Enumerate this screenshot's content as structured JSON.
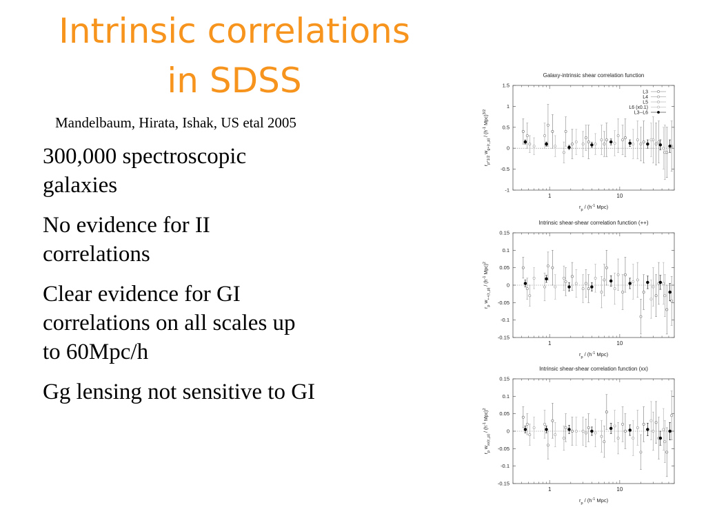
{
  "slide": {
    "title_line1": "Intrinsic correlations",
    "title_line2": "in SDSS",
    "subtitle": "Mandelbaum, Hirata, Ishak, US etal 2005",
    "title_color": "#f7941d",
    "bullets": [
      {
        "line1": "300,000 spectroscopic",
        "line2": "galaxies"
      },
      {
        "line1": "No evidence for II",
        "line2": "correlations"
      },
      {
        "line1": "Clear evidence for GI",
        "line2": "correlations on all scales up",
        "line3": "to 60Mpc/h"
      },
      {
        "line1": "Gg lensing not sensitive to GI"
      }
    ]
  },
  "chart_data": [
    {
      "type": "scatter",
      "title": "Galaxy-intrinsic shear correlation function",
      "xlabel": "r_p / (h^-1 Mpc)",
      "ylabel": "r_p^1/2 w_g+(r_p) / (h^-1 Mpc)^3/2",
      "x_scale": "log",
      "xlim": [
        0.3,
        60
      ],
      "ylim": [
        -1,
        1.5
      ],
      "yticks": [
        1.5,
        1,
        0.5,
        0,
        -0.5,
        -1
      ],
      "ytick_labels": [
        "1.5",
        "1",
        "0.5",
        "0",
        "-0.5",
        "-1"
      ],
      "xticks": [
        1,
        10
      ],
      "xtick_labels": [
        "1",
        "10"
      ],
      "legend": [
        "L3",
        "L4",
        "L5",
        "L6 (x0.1)",
        "L3--L6"
      ],
      "legend_position": "top-right",
      "zero_line": true,
      "series": [
        {
          "name": "L3--L6",
          "color": "#000000",
          "filled": true,
          "x": [
            0.45,
            0.9,
            1.9,
            4.0,
            7.5,
            14,
            25,
            38,
            52
          ],
          "y": [
            0.15,
            0.1,
            0.02,
            0.08,
            0.15,
            0.12,
            0.1,
            0.08,
            0.05
          ],
          "err": [
            0.05,
            0.05,
            0.05,
            0.06,
            0.07,
            0.08,
            0.1,
            0.12,
            0.15
          ]
        },
        {
          "name": "L3",
          "color": "#777777",
          "filled": false,
          "x": [
            0.42,
            1.1,
            2.1,
            3.6,
            6.5,
            12,
            22,
            33,
            47
          ],
          "y": [
            0.4,
            0.4,
            0.1,
            0.15,
            0.2,
            0.25,
            0.15,
            0.1,
            -0.1
          ],
          "err": [
            0.3,
            0.4,
            0.35,
            0.4,
            0.4,
            0.45,
            0.5,
            0.5,
            0.6
          ]
        },
        {
          "name": "L4",
          "color": "#888888",
          "filled": false,
          "x": [
            0.48,
            0.95,
            1.7,
            3.3,
            6.0,
            11,
            20,
            36,
            55
          ],
          "y": [
            0.3,
            0.55,
            0.4,
            0.25,
            0.1,
            0.2,
            0.1,
            0.15,
            0.05
          ],
          "err": [
            0.3,
            0.5,
            0.35,
            0.3,
            0.3,
            0.35,
            0.4,
            0.5,
            0.6
          ]
        },
        {
          "name": "L5",
          "color": "#999999",
          "filled": false,
          "x": [
            0.52,
            0.85,
            1.6,
            3.0,
            5.5,
            9.5,
            18,
            30,
            44
          ],
          "y": [
            0.1,
            0.3,
            -0.1,
            0.1,
            0.2,
            0.3,
            0.2,
            0.2,
            -0.1
          ],
          "err": [
            0.2,
            0.3,
            0.25,
            0.3,
            0.35,
            0.4,
            0.45,
            0.55,
            0.65
          ]
        },
        {
          "name": "L6 (x0.1)",
          "color": "#aaaaaa",
          "filled": false,
          "x": [
            0.6,
            1.2,
            2.4,
            4.5,
            8.5,
            15.5,
            28,
            42
          ],
          "y": [
            0.05,
            0.05,
            0.15,
            0.1,
            0.12,
            0.1,
            0.2,
            0.0
          ],
          "err": [
            0.2,
            0.25,
            0.3,
            0.25,
            0.3,
            0.35,
            0.4,
            0.5
          ]
        }
      ]
    },
    {
      "type": "scatter",
      "title": "Intrinsic shear-shear correlation function (++)",
      "xlabel": "r_p / (h^-1 Mpc)",
      "ylabel": "r_p w_++(r_p) / (h^-1 Mpc)^2",
      "x_scale": "log",
      "xlim": [
        0.3,
        60
      ],
      "ylim": [
        -0.15,
        0.15
      ],
      "yticks": [
        0.15,
        0.1,
        0.05,
        0,
        -0.05,
        -0.1,
        -0.15
      ],
      "ytick_labels": [
        "0.15",
        "0.1",
        "0.05",
        "0",
        "-0.05",
        "-0.1",
        "-0.15"
      ],
      "xticks": [
        1,
        10
      ],
      "xtick_labels": [
        "1",
        "10"
      ],
      "zero_line": true,
      "series": [
        {
          "name": "L3--L6",
          "color": "#000000",
          "filled": true,
          "x": [
            0.45,
            0.9,
            1.9,
            4.0,
            7.5,
            14,
            25,
            38,
            52
          ],
          "y": [
            0.005,
            0.018,
            -0.005,
            -0.005,
            0.012,
            0.005,
            0.008,
            0.008,
            -0.02
          ],
          "err": [
            0.01,
            0.01,
            0.012,
            0.012,
            0.015,
            0.015,
            0.018,
            0.02,
            0.025
          ]
        },
        {
          "name": "L3",
          "color": "#777777",
          "filled": false,
          "x": [
            0.42,
            1.1,
            2.1,
            3.6,
            6.5,
            12,
            22,
            33,
            47
          ],
          "y": [
            0.05,
            0.05,
            0.025,
            -0.01,
            0.05,
            0.03,
            -0.02,
            -0.03,
            -0.07
          ],
          "err": [
            0.03,
            0.05,
            0.04,
            0.04,
            0.05,
            0.05,
            0.05,
            0.06,
            0.07
          ]
        },
        {
          "name": "L4",
          "color": "#888888",
          "filled": false,
          "x": [
            0.48,
            0.95,
            1.7,
            3.3,
            6.0,
            11,
            20,
            36,
            55
          ],
          "y": [
            -0.01,
            0.055,
            0.01,
            0.005,
            0.015,
            -0.02,
            -0.09,
            0.005,
            -0.045
          ],
          "err": [
            0.03,
            0.04,
            0.04,
            0.04,
            0.045,
            0.05,
            0.05,
            0.06,
            0.07
          ]
        },
        {
          "name": "L5",
          "color": "#999999",
          "filled": false,
          "x": [
            0.52,
            0.85,
            1.6,
            3.0,
            5.5,
            9.5,
            18,
            30,
            44
          ],
          "y": [
            -0.03,
            -0.005,
            0.02,
            -0.01,
            -0.02,
            0.03,
            0.015,
            -0.005,
            -0.03
          ],
          "err": [
            0.03,
            0.04,
            0.035,
            0.04,
            0.045,
            0.045,
            0.05,
            0.055,
            0.06
          ]
        },
        {
          "name": "L6 (x0.1)",
          "color": "#aaaaaa",
          "filled": false,
          "x": [
            0.6,
            1.2,
            2.4,
            4.5,
            8.5,
            15.5,
            28,
            42
          ],
          "y": [
            0.02,
            -0.005,
            0.005,
            0.02,
            -0.01,
            0.01,
            -0.04,
            0.005
          ],
          "err": [
            0.03,
            0.035,
            0.04,
            0.04,
            0.045,
            0.05,
            0.055,
            0.06
          ]
        }
      ]
    },
    {
      "type": "scatter",
      "title": "Intrinsic shear-shear correlation function (xx)",
      "xlabel": "r_p / (h^-1 Mpc)",
      "ylabel": "r_p w_xx(r_p) / (h^-1 Mpc)^2",
      "x_scale": "log",
      "xlim": [
        0.3,
        60
      ],
      "ylim": [
        -0.15,
        0.15
      ],
      "yticks": [
        0.15,
        0.1,
        0.05,
        0,
        -0.05,
        -0.1,
        -0.15
      ],
      "ytick_labels": [
        "0.15",
        "0.1",
        "0.05",
        "0",
        "-0.05",
        "-0.1",
        "-0.15"
      ],
      "xticks": [
        1,
        10
      ],
      "xtick_labels": [
        "1",
        "10"
      ],
      "zero_line": true,
      "series": [
        {
          "name": "L3--L6",
          "color": "#000000",
          "filled": true,
          "x": [
            0.45,
            0.9,
            1.9,
            4.0,
            7.5,
            14,
            25,
            38,
            52
          ],
          "y": [
            0.005,
            0.005,
            0.005,
            0.0,
            0.008,
            0.003,
            0.005,
            -0.02,
            0.0
          ],
          "err": [
            0.01,
            0.01,
            0.012,
            0.012,
            0.015,
            0.015,
            0.018,
            0.02,
            0.025
          ]
        },
        {
          "name": "L3",
          "color": "#777777",
          "filled": false,
          "x": [
            0.42,
            1.1,
            2.1,
            3.6,
            6.5,
            12,
            22,
            33,
            47
          ],
          "y": [
            0.04,
            0.03,
            0.0,
            0.01,
            0.055,
            0.0,
            0.02,
            0.025,
            -0.06
          ],
          "err": [
            0.03,
            0.05,
            0.04,
            0.04,
            0.05,
            0.05,
            0.05,
            0.06,
            0.07
          ]
        },
        {
          "name": "L4",
          "color": "#888888",
          "filled": false,
          "x": [
            0.48,
            0.95,
            1.7,
            3.3,
            6.0,
            11,
            20,
            36,
            55
          ],
          "y": [
            0.02,
            -0.04,
            0.01,
            -0.005,
            -0.03,
            0.02,
            -0.06,
            -0.02,
            0.045
          ],
          "err": [
            0.03,
            0.04,
            0.04,
            0.04,
            0.045,
            0.05,
            0.05,
            0.06,
            0.07
          ]
        },
        {
          "name": "L5",
          "color": "#999999",
          "filled": false,
          "x": [
            0.52,
            0.85,
            1.6,
            3.0,
            5.5,
            9.5,
            18,
            30,
            44
          ],
          "y": [
            -0.01,
            0.02,
            -0.02,
            0.0,
            -0.015,
            -0.02,
            0.01,
            0.0,
            -0.03
          ],
          "err": [
            0.03,
            0.04,
            0.035,
            0.04,
            0.045,
            0.045,
            0.05,
            0.055,
            0.06
          ]
        },
        {
          "name": "L6 (x0.1)",
          "color": "#aaaaaa",
          "filled": false,
          "x": [
            0.6,
            1.2,
            2.4,
            4.5,
            8.5,
            15.5,
            28,
            42
          ],
          "y": [
            0.01,
            -0.01,
            0.0,
            -0.005,
            0.015,
            -0.02,
            0.03,
            0.005
          ],
          "err": [
            0.03,
            0.035,
            0.04,
            0.04,
            0.045,
            0.05,
            0.055,
            0.06
          ]
        }
      ]
    }
  ]
}
